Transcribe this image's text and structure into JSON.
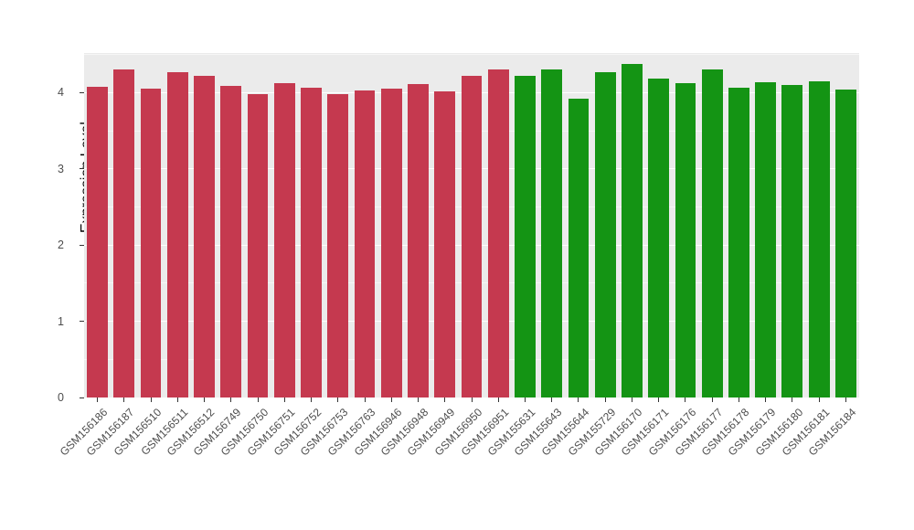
{
  "chart_data": {
    "type": "bar",
    "title": "",
    "xlabel": "",
    "ylabel": "Expression Level",
    "ylim": [
      0,
      4.52
    ],
    "yticks": [
      0,
      1,
      2,
      3,
      4
    ],
    "grid": "major-and-minor-horizontal-white",
    "legend": "none",
    "panel_bg": "#EBEBEB",
    "colors": {
      "red": "#C5394F",
      "green": "#149414"
    },
    "categories": [
      "GSM156186",
      "GSM156187",
      "GSM156510",
      "GSM156511",
      "GSM156512",
      "GSM156749",
      "GSM156750",
      "GSM156751",
      "GSM156752",
      "GSM156753",
      "GSM156763",
      "GSM156946",
      "GSM156948",
      "GSM156949",
      "GSM156950",
      "GSM156951",
      "GSM155631",
      "GSM155643",
      "GSM155644",
      "GSM155729",
      "GSM156170",
      "GSM156171",
      "GSM156176",
      "GSM156177",
      "GSM156178",
      "GSM156179",
      "GSM156180",
      "GSM156181",
      "GSM156184"
    ],
    "values": [
      4.08,
      4.3,
      4.05,
      4.27,
      4.22,
      4.09,
      3.98,
      4.13,
      4.06,
      3.98,
      4.03,
      4.05,
      4.11,
      4.02,
      4.22,
      4.31,
      4.22,
      4.3,
      3.92,
      4.27,
      4.38,
      4.19,
      4.12,
      4.3,
      4.07,
      4.14,
      4.1,
      4.15,
      4.04
    ],
    "bar_group": [
      "red",
      "red",
      "red",
      "red",
      "red",
      "red",
      "red",
      "red",
      "red",
      "red",
      "red",
      "red",
      "red",
      "red",
      "red",
      "red",
      "green",
      "green",
      "green",
      "green",
      "green",
      "green",
      "green",
      "green",
      "green",
      "green",
      "green",
      "green",
      "green"
    ]
  }
}
